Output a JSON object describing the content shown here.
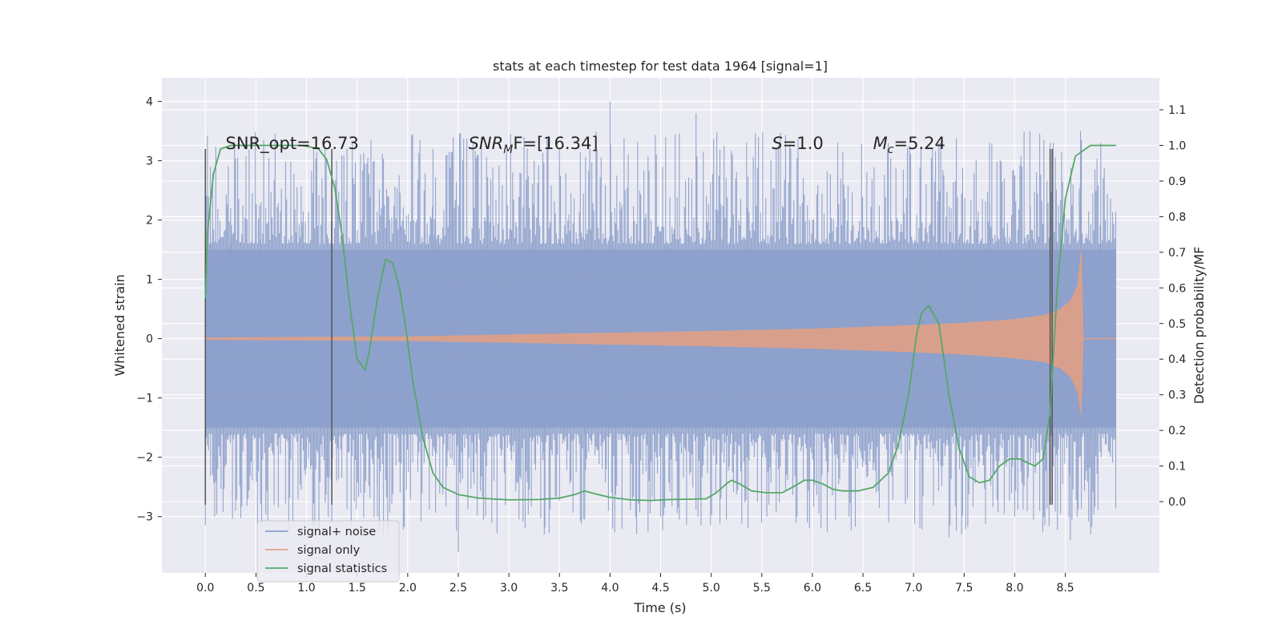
{
  "chart_data": {
    "type": "line",
    "title": "stats at each timestep for test data 1964 [signal=1]",
    "xlabel": "Time (s)",
    "ylabel": "Whitened strain",
    "y2label": "Detection probability/MF",
    "xlim": [
      -0.43,
      9.43
    ],
    "ylim": [
      -3.95,
      4.4
    ],
    "y2lim": [
      -0.2,
      1.19
    ],
    "xticks": [
      0.0,
      0.5,
      1.0,
      1.5,
      2.0,
      2.5,
      3.0,
      3.5,
      4.0,
      4.5,
      5.0,
      5.5,
      6.0,
      6.5,
      7.0,
      7.5,
      8.0,
      8.5
    ],
    "xtick_labels": [
      "0.0",
      "0.5",
      "1.0",
      "1.5",
      "2.0",
      "2.5",
      "3.0",
      "3.5",
      "4.0",
      "4.5",
      "5.0",
      "5.5",
      "6.0",
      "6.5",
      "7.0",
      "7.5",
      "8.0",
      "8.5"
    ],
    "yticks": [
      4,
      3,
      2,
      1,
      0,
      -1,
      -2,
      -3
    ],
    "ytick_labels": [
      "4",
      "3",
      "2",
      "1",
      "0",
      "−1",
      "−2",
      "−3"
    ],
    "y2ticks": [
      1.1,
      1.0,
      0.9,
      0.8,
      0.7,
      0.6,
      0.5,
      0.4,
      0.3,
      0.2,
      0.1,
      0.0
    ],
    "y2tick_labels": [
      "1.1",
      "1.0",
      "0.9",
      "0.8",
      "0.7",
      "0.6",
      "0.5",
      "0.4",
      "0.3",
      "0.2",
      "0.1",
      "0.0"
    ],
    "series": [
      {
        "name": "signal+ noise",
        "color": "#8da0cb",
        "description": "whitened strain noise band spanning 0.0 to 9.0 s, core band about -1.5 to 1.5",
        "t_range": [
          0.0,
          9.0
        ],
        "band_core": [
          -1.5,
          1.5
        ],
        "spikes_up": [
          [
            0.05,
            2.9
          ],
          [
            0.25,
            2.2
          ],
          [
            0.55,
            2.3
          ],
          [
            1.05,
            2.6
          ],
          [
            1.4,
            3.2
          ],
          [
            2.25,
            3.2
          ],
          [
            2.45,
            3.4
          ],
          [
            3.25,
            3.0
          ],
          [
            3.5,
            3.2
          ],
          [
            3.8,
            3.2
          ],
          [
            4.0,
            4.0
          ],
          [
            4.55,
            3.4
          ],
          [
            4.85,
            3.8
          ],
          [
            5.35,
            3.3
          ],
          [
            6.25,
            3.3
          ],
          [
            6.75,
            3.3
          ],
          [
            7.25,
            3.3
          ],
          [
            7.75,
            3.3
          ],
          [
            8.15,
            3.5
          ],
          [
            8.35,
            3.3
          ],
          [
            8.65,
            3.5
          ],
          [
            8.85,
            3.3
          ]
        ],
        "spikes_down": [
          [
            0.0,
            -3.15
          ],
          [
            1.25,
            -3.1
          ],
          [
            1.7,
            -3.0
          ],
          [
            2.5,
            -3.6
          ],
          [
            3.1,
            -3.05
          ],
          [
            3.35,
            -3.3
          ],
          [
            3.75,
            -3.05
          ],
          [
            4.5,
            -3.0
          ],
          [
            4.9,
            -3.15
          ],
          [
            5.15,
            -3.05
          ],
          [
            5.55,
            -3.0
          ],
          [
            5.95,
            -3.1
          ],
          [
            7.35,
            -3.35
          ],
          [
            8.0,
            -3.0
          ],
          [
            8.55,
            -3.4
          ],
          [
            8.75,
            -3.3
          ]
        ]
      },
      {
        "name": "signal only",
        "color": "#e0a085",
        "description": "chirp waveform with growing amplitude, merger near 8.66 s",
        "envelope_t": [
          0.0,
          2.0,
          3.0,
          4.0,
          5.0,
          6.0,
          7.0,
          7.5,
          8.0,
          8.3,
          8.45,
          8.55,
          8.62,
          8.66,
          8.68
        ],
        "envelope_amp": [
          0.02,
          0.04,
          0.07,
          0.1,
          0.13,
          0.17,
          0.23,
          0.27,
          0.33,
          0.4,
          0.5,
          0.65,
          0.9,
          1.55,
          0.0
        ],
        "asymmetric_peak": {
          "t": 8.65,
          "up": 1.6,
          "down": -1.35
        }
      },
      {
        "name": "signal statistics",
        "color": "#55a868",
        "axis": "right",
        "t": [
          0.0,
          0.02,
          0.08,
          0.15,
          0.25,
          0.4,
          0.6,
          0.8,
          0.95,
          1.05,
          1.12,
          1.2,
          1.28,
          1.35,
          1.42,
          1.5,
          1.58,
          1.62,
          1.7,
          1.78,
          1.85,
          1.92,
          1.98,
          2.05,
          2.15,
          2.25,
          2.35,
          2.5,
          2.7,
          3.0,
          3.3,
          3.5,
          3.65,
          3.75,
          3.85,
          4.0,
          4.2,
          4.4,
          4.6,
          4.8,
          4.95,
          5.05,
          5.15,
          5.2,
          5.28,
          5.4,
          5.55,
          5.7,
          5.8,
          5.92,
          6.0,
          6.1,
          6.2,
          6.3,
          6.45,
          6.6,
          6.75,
          6.85,
          6.95,
          7.03,
          7.08,
          7.15,
          7.25,
          7.35,
          7.45,
          7.55,
          7.65,
          7.75,
          7.85,
          7.95,
          8.05,
          8.12,
          8.2,
          8.28,
          8.35,
          8.42,
          8.5,
          8.6,
          8.75,
          9.0
        ],
        "values": [
          0.57,
          0.75,
          0.92,
          0.99,
          1.0,
          1.0,
          1.0,
          1.0,
          1.0,
          0.995,
          0.99,
          0.96,
          0.88,
          0.75,
          0.57,
          0.4,
          0.37,
          0.42,
          0.57,
          0.68,
          0.67,
          0.6,
          0.49,
          0.34,
          0.18,
          0.08,
          0.04,
          0.02,
          0.01,
          0.005,
          0.006,
          0.01,
          0.02,
          0.03,
          0.022,
          0.012,
          0.005,
          0.003,
          0.006,
          0.007,
          0.008,
          0.025,
          0.05,
          0.06,
          0.05,
          0.03,
          0.025,
          0.025,
          0.04,
          0.06,
          0.06,
          0.05,
          0.035,
          0.03,
          0.03,
          0.04,
          0.08,
          0.16,
          0.3,
          0.47,
          0.53,
          0.55,
          0.5,
          0.3,
          0.15,
          0.07,
          0.053,
          0.06,
          0.1,
          0.12,
          0.12,
          0.11,
          0.1,
          0.12,
          0.25,
          0.6,
          0.85,
          0.97,
          1.0,
          1.0
        ]
      }
    ],
    "vlines": [
      {
        "t": 0.0,
        "y1": 3.2,
        "y2": -2.8
      },
      {
        "t": 1.25,
        "y1": 3.2,
        "y2": -2.8
      },
      {
        "t": 8.35,
        "y1": 3.2,
        "y2": -2.8
      },
      {
        "t": 8.37,
        "y1": 3.2,
        "y2": -2.8
      }
    ],
    "annotations": [
      {
        "t": 0.2,
        "y": 3.2,
        "text": "SNR_opt=16.73"
      },
      {
        "t": 2.6,
        "y": 3.2,
        "main": "SNR",
        "sub": "M",
        "rest": "F=[16.34]"
      },
      {
        "t": 5.6,
        "y": 3.2,
        "main": "S",
        "rest": "=1.0"
      },
      {
        "t": 6.6,
        "y": 3.2,
        "main": "M",
        "sub": "c",
        "rest": "=5.24"
      }
    ],
    "legend": {
      "placement": "lower-left"
    },
    "grid": true
  }
}
